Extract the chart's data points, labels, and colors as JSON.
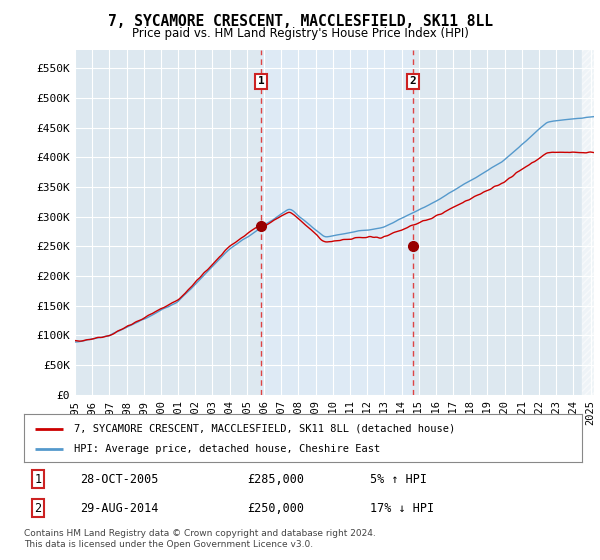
{
  "title": "7, SYCAMORE CRESCENT, MACCLESFIELD, SK11 8LL",
  "subtitle": "Price paid vs. HM Land Registry's House Price Index (HPI)",
  "ylabel_ticks": [
    "£0",
    "£50K",
    "£100K",
    "£150K",
    "£200K",
    "£250K",
    "£300K",
    "£350K",
    "£400K",
    "£450K",
    "£500K",
    "£550K"
  ],
  "ytick_values": [
    0,
    50000,
    100000,
    150000,
    200000,
    250000,
    300000,
    350000,
    400000,
    450000,
    500000,
    550000
  ],
  "ylim": [
    0,
    580000
  ],
  "xlim_start": 1995.0,
  "xlim_end": 2025.2,
  "purchase1_x": 2005.82,
  "purchase1_y": 285000,
  "purchase1_label": "1",
  "purchase2_x": 2014.66,
  "purchase2_y": 250000,
  "purchase2_label": "2",
  "legend_line1": "7, SYCAMORE CRESCENT, MACCLESFIELD, SK11 8LL (detached house)",
  "legend_line2": "HPI: Average price, detached house, Cheshire East",
  "annotation1_date": "28-OCT-2005",
  "annotation1_price": "£285,000",
  "annotation1_hpi": "5% ↑ HPI",
  "annotation2_date": "29-AUG-2014",
  "annotation2_price": "£250,000",
  "annotation2_hpi": "17% ↓ HPI",
  "footer": "Contains HM Land Registry data © Crown copyright and database right 2024.\nThis data is licensed under the Open Government Licence v3.0.",
  "line_color_red": "#cc0000",
  "line_color_blue": "#5599cc",
  "bg_color": "#dde8f0",
  "shade_color": "#deeaf5",
  "grid_color": "#ffffff",
  "vline_color": "#dd4444",
  "marker_color": "#990000"
}
